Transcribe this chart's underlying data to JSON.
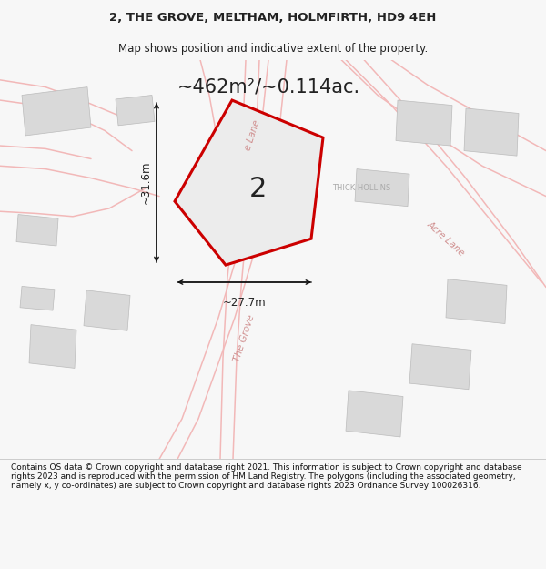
{
  "title": "2, THE GROVE, MELTHAM, HOLMFIRTH, HD9 4EH",
  "subtitle": "Map shows position and indicative extent of the property.",
  "area_text": "~462m²/~0.114ac.",
  "number_label": "2",
  "thick_hollins": "THICK HOLLINS",
  "dim_h": "~31.6m",
  "dim_w": "~27.7m",
  "road_acre_lane": "Acre Lane",
  "road_the_grove": "The Grove",
  "road_e_lane": "e Lane",
  "footer": "Contains OS data © Crown copyright and database right 2021. This information is subject to Crown copyright and database rights 2023 and is reproduced with the permission of HM Land Registry. The polygons (including the associated geometry, namely x, y co-ordinates) are subject to Crown copyright and database rights 2023 Ordnance Survey 100026316.",
  "bg_color": "#f7f7f7",
  "map_bg": "#f8f8f8",
  "plot_color_face": "#ececec",
  "plot_color_edge": "#cc0000",
  "road_color": "#f2b8b8",
  "building_color": "#d9d9d9",
  "building_edge": "#bbbbbb",
  "text_color": "#222222",
  "road_label_color": "#d09090",
  "dim_line_color": "#111111",
  "footer_color": "#111111"
}
